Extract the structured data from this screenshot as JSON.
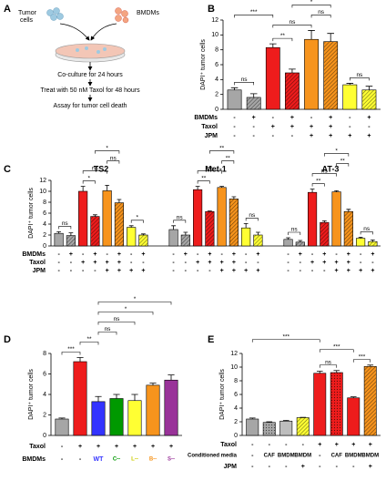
{
  "diagram": {
    "panel": "A",
    "tumor_label": [
      "Tumor",
      "cells"
    ],
    "bmdm_label": "BMDMs",
    "steps": [
      "Co-culture for 24 hours",
      "Treat with 50 nM Taxol for 48 hours",
      "Assay for tumor cell death"
    ]
  },
  "chart_data": [
    {
      "type": "bar",
      "panel": "B",
      "ylabel": "DAPI⁺ tumor cells",
      "ylim": [
        0,
        12
      ],
      "yticks": [
        0,
        2,
        4,
        6,
        8,
        10,
        12
      ],
      "colors": [
        "#a6a6a6",
        "#a6a6a6",
        "#ee1c1c",
        "#ee1c1c",
        "#f7941d",
        "#f7941d",
        "#ffff33",
        "#ffff33"
      ],
      "patterns": [
        "solid",
        "hatch",
        "solid",
        "hatch",
        "solid",
        "hatch",
        "solid",
        "hatch"
      ],
      "groups": [
        {
          "values": [
            2.6,
            1.6,
            8.3,
            4.9,
            9.4,
            9.1,
            3.3,
            2.6
          ],
          "errors": [
            0.3,
            0.5,
            0.5,
            0.5,
            1.2,
            1.1,
            0.2,
            0.5
          ],
          "sig": [
            {
              "from": 0,
              "to": 1,
              "label": "ns"
            },
            {
              "from": 2,
              "to": 3,
              "label": "**"
            },
            {
              "from": 6,
              "to": 7,
              "label": "ns"
            },
            {
              "from": 2,
              "to": 4,
              "label": "ns"
            },
            {
              "from": 4,
              "to": 5,
              "label": "ns"
            },
            {
              "from": 0,
              "to": 2,
              "label": "***"
            },
            {
              "from": 3,
              "to": 5,
              "label": "*"
            }
          ]
        }
      ],
      "rows": [
        {
          "label": "BMDMs",
          "values": [
            "-",
            "+",
            "-",
            "+",
            "-",
            "+",
            "-",
            "+"
          ]
        },
        {
          "label": "Taxol",
          "values": [
            "-",
            "-",
            "+",
            "+",
            "+",
            "+",
            "-",
            "-"
          ]
        },
        {
          "label": "JPM",
          "values": [
            "-",
            "-",
            "-",
            "-",
            "+",
            "+",
            "+",
            "+"
          ]
        }
      ]
    },
    {
      "type": "bar",
      "panel": "C",
      "ylabel": "DAPI⁺ tumor cells",
      "ylim": [
        0,
        12
      ],
      "yticks": [
        0,
        2,
        4,
        6,
        8,
        10,
        12
      ],
      "colors": [
        "#a6a6a6",
        "#a6a6a6",
        "#ee1c1c",
        "#ee1c1c",
        "#f7941d",
        "#f7941d",
        "#ffff33",
        "#ffff33"
      ],
      "patterns": [
        "solid",
        "hatch",
        "solid",
        "hatch",
        "solid",
        "hatch",
        "solid",
        "hatch"
      ],
      "groups": [
        {
          "name": "TS2",
          "values": [
            2.3,
            1.9,
            10.0,
            5.4,
            10.1,
            7.9,
            3.4,
            2.0
          ],
          "errors": [
            0.3,
            0.5,
            0.9,
            0.3,
            1.0,
            0.6,
            0.3,
            0.2
          ],
          "sig": [
            {
              "from": 0,
              "to": 1,
              "label": "ns"
            },
            {
              "from": 2,
              "to": 3,
              "label": "*"
            },
            {
              "from": 6,
              "to": 7,
              "label": "*"
            },
            {
              "from": 2,
              "to": 4,
              "label": "ns"
            },
            {
              "from": 4,
              "to": 5,
              "label": "ns"
            },
            {
              "from": 3,
              "to": 5,
              "label": "*"
            }
          ]
        },
        {
          "name": "Met-1",
          "values": [
            3.0,
            2.0,
            10.3,
            6.3,
            10.7,
            8.6,
            3.3,
            2.0
          ],
          "errors": [
            0.7,
            0.5,
            0.6,
            0.1,
            0.2,
            0.4,
            0.8,
            0.5
          ],
          "sig": [
            {
              "from": 0,
              "to": 1,
              "label": "ns"
            },
            {
              "from": 2,
              "to": 3,
              "label": "**"
            },
            {
              "from": 6,
              "to": 7,
              "label": "ns"
            },
            {
              "from": 2,
              "to": 4,
              "label": "ns"
            },
            {
              "from": 4,
              "to": 5,
              "label": "**"
            },
            {
              "from": 3,
              "to": 5,
              "label": "**"
            }
          ]
        },
        {
          "name": "AT-3",
          "values": [
            1.2,
            0.7,
            9.8,
            4.3,
            9.9,
            6.3,
            1.4,
            0.8
          ],
          "errors": [
            0.3,
            0.3,
            0.6,
            0.3,
            0.2,
            0.4,
            0.2,
            0.3
          ],
          "sig": [
            {
              "from": 0,
              "to": 1,
              "label": "ns"
            },
            {
              "from": 2,
              "to": 3,
              "label": "**"
            },
            {
              "from": 6,
              "to": 7,
              "label": "ns"
            },
            {
              "from": 2,
              "to": 4,
              "label": "ns"
            },
            {
              "from": 4,
              "to": 5,
              "label": "**"
            },
            {
              "from": 3,
              "to": 5,
              "label": "*"
            }
          ]
        }
      ],
      "rows": [
        {
          "label": "BMDMs",
          "values": [
            "-",
            "+",
            "-",
            "+",
            "-",
            "+",
            "-",
            "+"
          ]
        },
        {
          "label": "Taxol",
          "values": [
            "-",
            "-",
            "+",
            "+",
            "+",
            "+",
            "-",
            "-"
          ]
        },
        {
          "label": "JPM",
          "values": [
            "-",
            "-",
            "-",
            "-",
            "+",
            "+",
            "+",
            "+"
          ]
        }
      ]
    },
    {
      "type": "bar",
      "panel": "D",
      "ylabel": "DAPI⁺ tumor cells",
      "ylim": [
        0,
        8
      ],
      "yticks": [
        0,
        2,
        4,
        6,
        8
      ],
      "colors": [
        "#a6a6a6",
        "#ee1c1c",
        "#3333ff",
        "#009900",
        "#ffff33",
        "#f7941d",
        "#993399"
      ],
      "patterns": [
        "solid",
        "solid",
        "solid",
        "solid",
        "solid",
        "solid",
        "solid"
      ],
      "groups": [
        {
          "values": [
            1.6,
            7.2,
            3.3,
            3.6,
            3.4,
            4.9,
            5.4
          ],
          "errors": [
            0.1,
            0.4,
            0.5,
            0.4,
            0.6,
            0.2,
            0.5
          ],
          "sig": [
            {
              "from": 0,
              "to": 1,
              "label": "***"
            },
            {
              "from": 1,
              "to": 2,
              "label": "**"
            },
            {
              "from": 2,
              "to": 3,
              "label": "ns"
            },
            {
              "from": 2,
              "to": 4,
              "label": "ns"
            },
            {
              "from": 2,
              "to": 5,
              "label": "*"
            },
            {
              "from": 2,
              "to": 6,
              "label": "*"
            }
          ]
        }
      ],
      "rows": [
        {
          "label": "Taxol",
          "values": [
            "-",
            "+",
            "+",
            "+",
            "+",
            "+",
            "+"
          ]
        },
        {
          "label": "BMDMs",
          "values": [
            "-",
            "-",
            "WT",
            "C--",
            "L--",
            "B--",
            "S--"
          ],
          "colors": [
            "#000000",
            "#000000",
            "#3333ff",
            "#009900",
            "#cccc00",
            "#f7941d",
            "#993399"
          ]
        }
      ]
    },
    {
      "type": "bar",
      "panel": "E",
      "ylabel": "DAPI⁺ tumor cells",
      "ylim": [
        0,
        12
      ],
      "yticks": [
        0,
        2,
        4,
        6,
        8,
        10,
        12
      ],
      "colors": [
        "#a6a6a6",
        "#a6a6a6",
        "#bdbdbd",
        "#ffff33",
        "#ee1c1c",
        "#ee1c1c",
        "#ee1c1c",
        "#f7941d"
      ],
      "patterns": [
        "solid",
        "dots",
        "solid",
        "hatch",
        "solid",
        "dots",
        "solid",
        "hatch"
      ],
      "groups": [
        {
          "values": [
            2.4,
            1.9,
            2.1,
            2.6,
            9.1,
            9.2,
            5.5,
            10.1
          ],
          "errors": [
            0.15,
            0.1,
            0.1,
            0.05,
            0.3,
            0.3,
            0.15,
            0.2
          ],
          "sig": [
            {
              "from": 4,
              "to": 5,
              "label": "ns"
            },
            {
              "from": 6,
              "to": 7,
              "label": "***"
            },
            {
              "from": 4,
              "to": 6,
              "label": "***"
            },
            {
              "from": 0,
              "to": 4,
              "label": "***"
            }
          ]
        }
      ],
      "rows": [
        {
          "label": "Taxol",
          "values": [
            "-",
            "-",
            "-",
            "-",
            "+",
            "+",
            "+",
            "+"
          ]
        },
        {
          "label": "Conditioned media",
          "values": [
            "-",
            "CAF",
            "BMDM",
            "BMDM",
            "-",
            "CAF",
            "BMDM",
            "BMDM"
          ]
        },
        {
          "label": "JPM",
          "values": [
            "-",
            "-",
            "-",
            "+",
            "-",
            "-",
            "-",
            "+"
          ]
        }
      ]
    }
  ]
}
